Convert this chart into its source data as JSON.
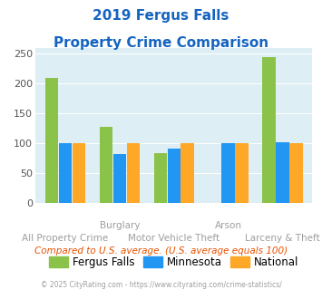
{
  "title_line1": "2019 Fergus Falls",
  "title_line2": "Property Crime Comparison",
  "x_labels_top": [
    "",
    "Burglary",
    "",
    "Arson",
    ""
  ],
  "x_labels_bottom": [
    "All Property Crime",
    "",
    "Motor Vehicle Theft",
    "",
    "Larceny & Theft"
  ],
  "fergus_falls": [
    210,
    128,
    84,
    0,
    245
  ],
  "minnesota": [
    100,
    82,
    91,
    100,
    102
  ],
  "national": [
    101,
    101,
    100,
    100,
    100
  ],
  "ff_color": "#8bc34a",
  "mn_color": "#2196f3",
  "nat_color": "#ffa726",
  "bg_color": "#ddeef5",
  "ylim": [
    0,
    260
  ],
  "yticks": [
    0,
    50,
    100,
    150,
    200,
    250
  ],
  "title_color": "#1565c0",
  "xlabel_color": "#9e9e9e",
  "subtitle_color": "#e65100",
  "footer_color": "#9e9e9e",
  "subtitle_text": "Compared to U.S. average. (U.S. average equals 100)",
  "footer_text": "© 2025 CityRating.com - https://www.cityrating.com/crime-statistics/",
  "legend_labels": [
    "Fergus Falls",
    "Minnesota",
    "National"
  ]
}
